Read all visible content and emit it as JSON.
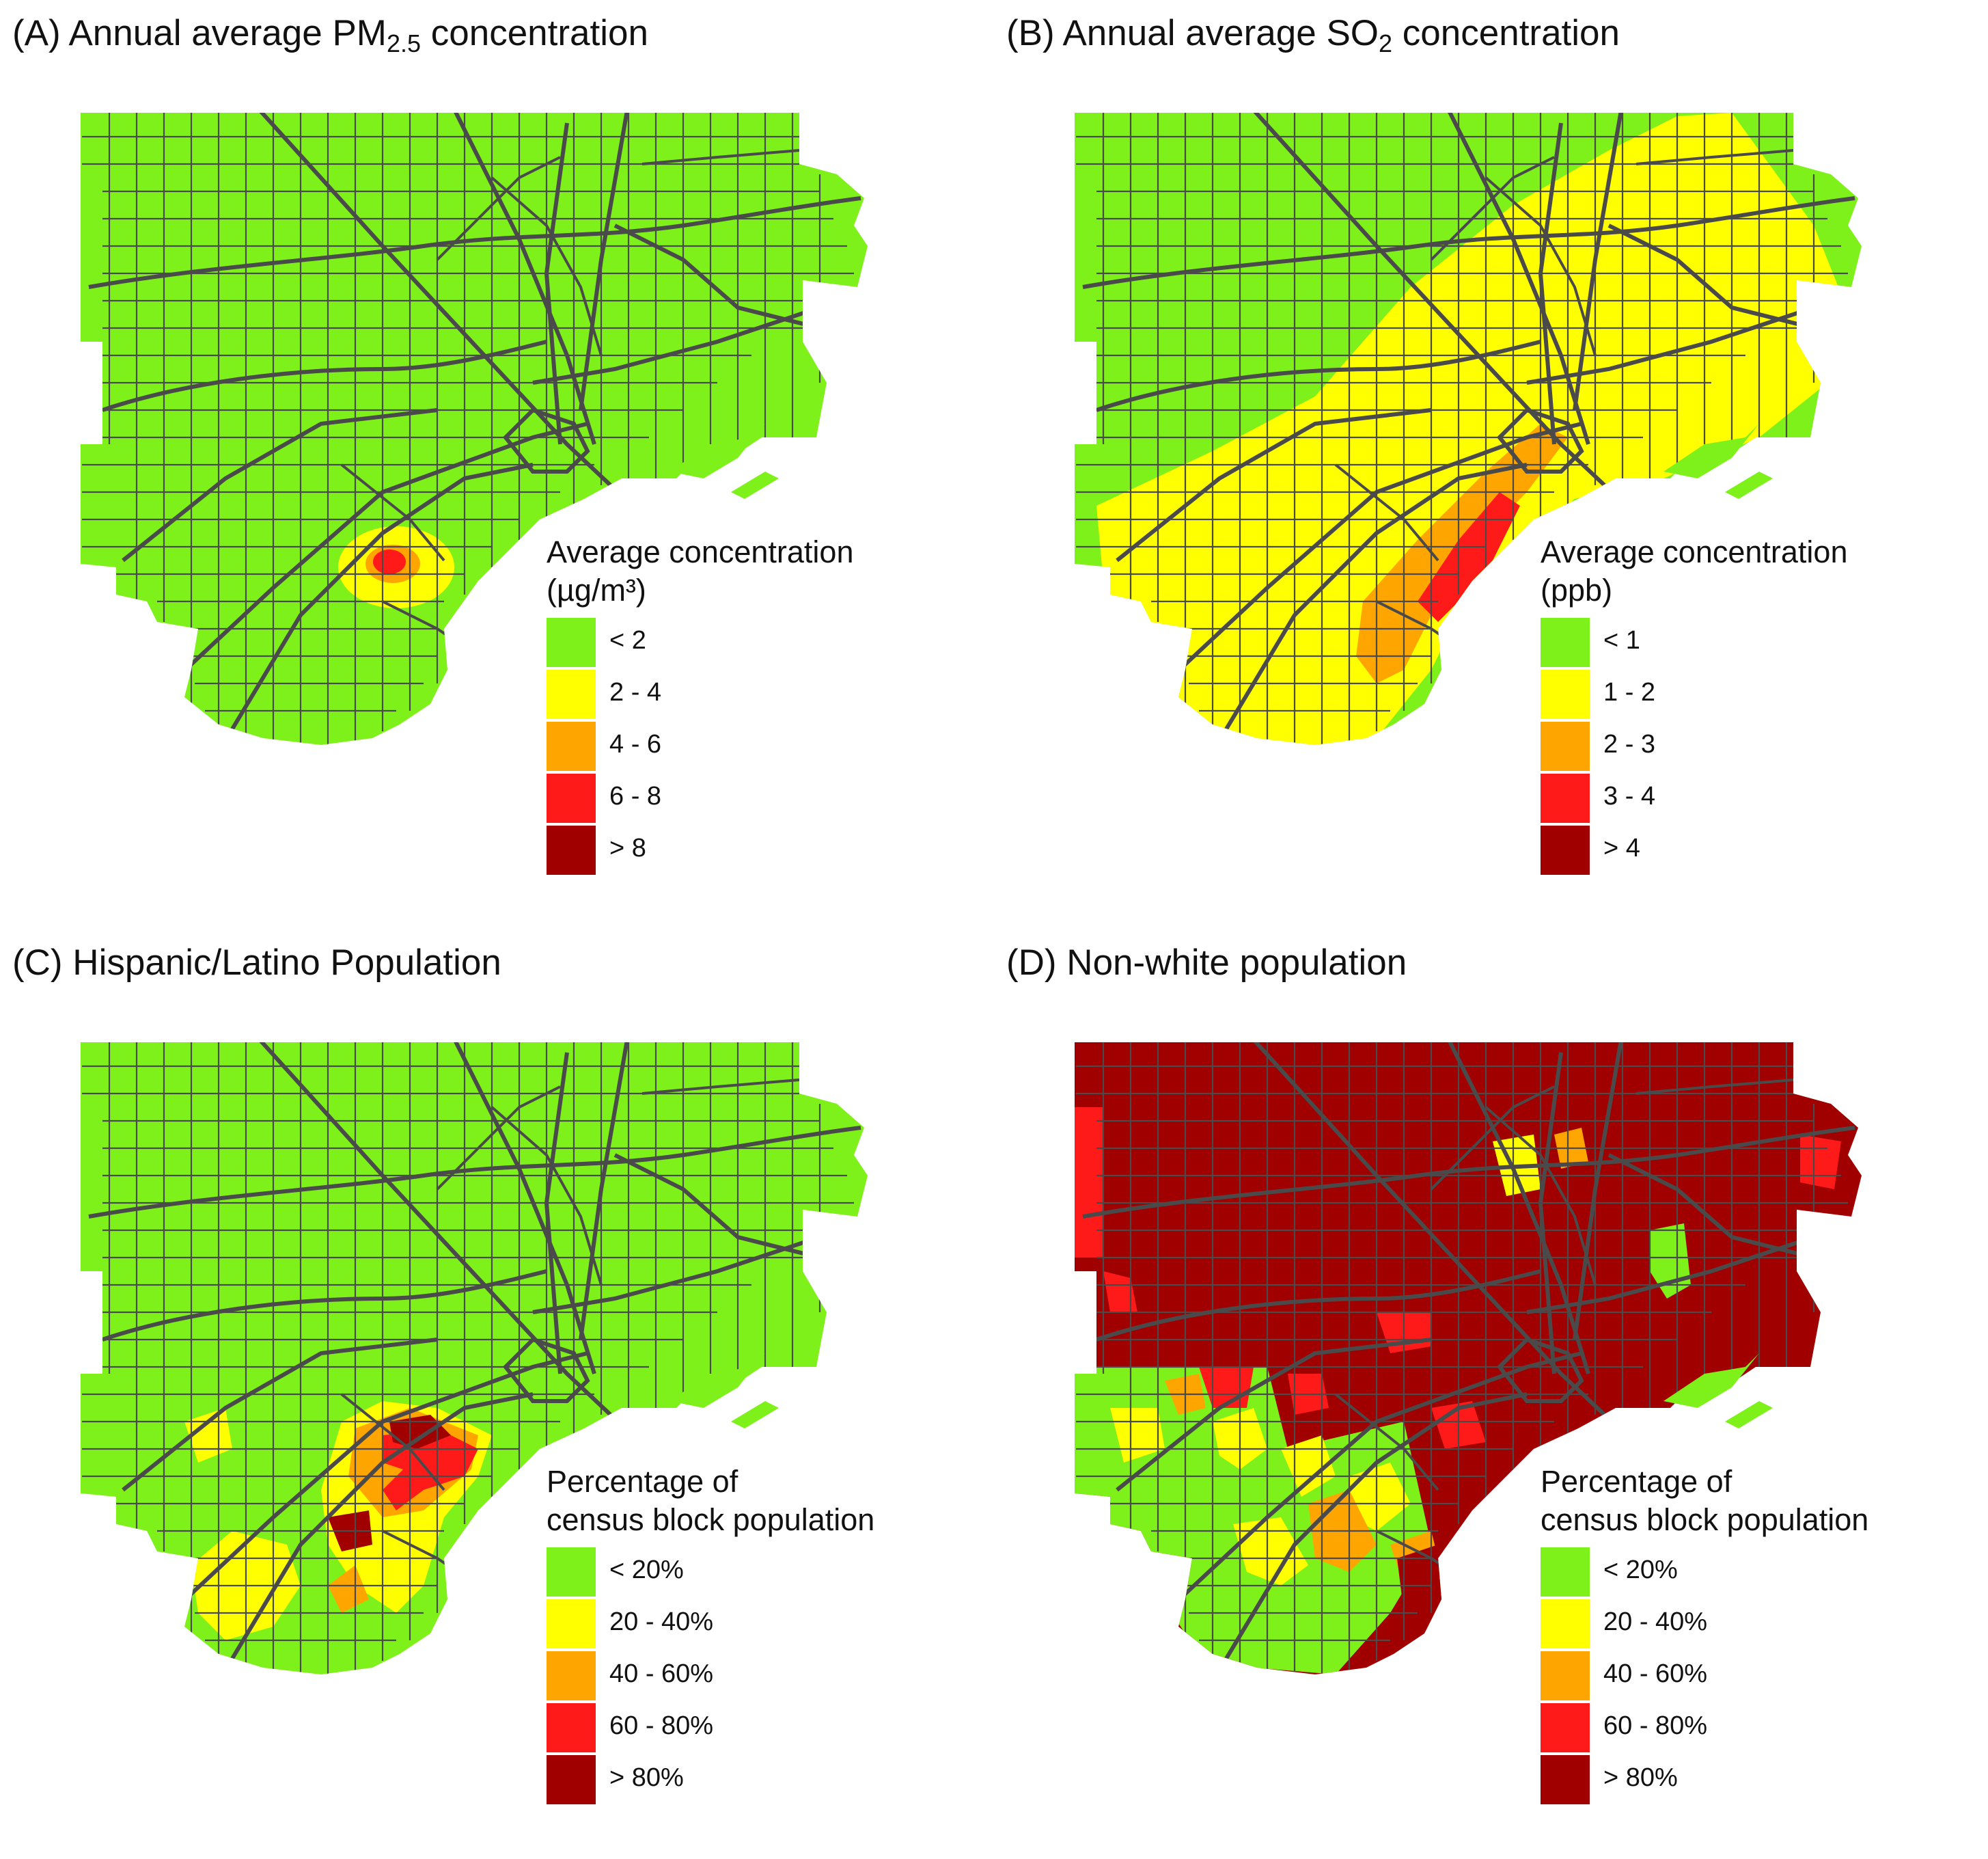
{
  "colors": {
    "green": "#7ff11a",
    "yellow": "#ffff00",
    "orange": "#ffa500",
    "red": "#ff1a1a",
    "darkred": "#a00000",
    "roads": "#4a4a4a",
    "water": "#ffffff"
  },
  "panels": {
    "a": {
      "title_pre": "(A) Annual average PM",
      "title_sub": "2.5",
      "title_post": " concentration",
      "legend_title_1": "Average concentration",
      "legend_title_2": "(µg/m³)",
      "legend": [
        "< 2",
        "2 - 4",
        "4 - 6",
        "6 - 8",
        "> 8"
      ]
    },
    "b": {
      "title_pre": "(B) Annual average SO",
      "title_sub": "2",
      "title_post": " concentration",
      "legend_title_1": "Average concentration",
      "legend_title_2": "(ppb)",
      "legend": [
        "< 1",
        "1 - 2",
        "2 - 3",
        "3 - 4",
        "> 4"
      ]
    },
    "c": {
      "title": "(C) Hispanic/Latino Population",
      "legend_title_1": "Percentage of",
      "legend_title_2": "census block population",
      "legend": [
        "< 20%",
        "20 - 40%",
        "40 - 60%",
        "60 - 80%",
        "> 80%"
      ]
    },
    "d": {
      "title": "(D) Non-white population",
      "legend_title_1": "Percentage of",
      "legend_title_2": "census block population",
      "legend": [
        "< 20%",
        "20 - 40%",
        "40 - 60%",
        "60 - 80%",
        "> 80%"
      ]
    }
  }
}
